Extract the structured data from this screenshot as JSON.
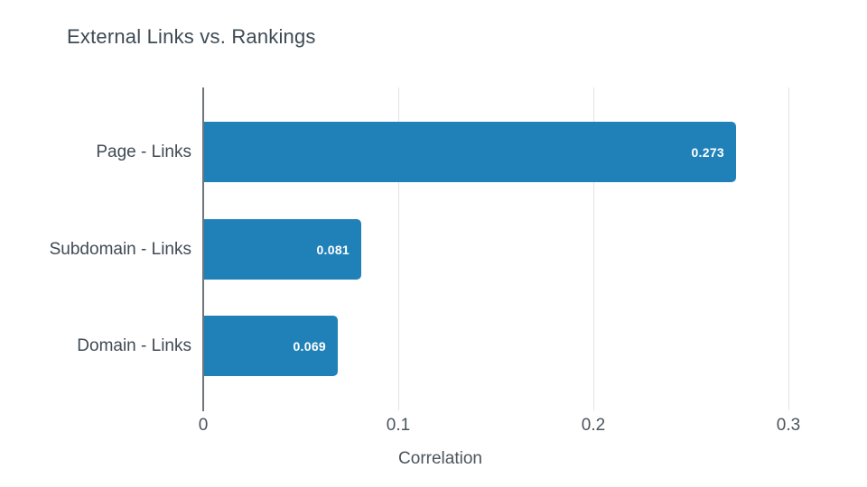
{
  "chart_data": {
    "type": "bar",
    "orientation": "horizontal",
    "title": "External Links vs. Rankings",
    "xlabel": "Correlation",
    "ylabel": "",
    "categories": [
      "Page - Links",
      "Subdomain - Links",
      "Domain - Links"
    ],
    "values": [
      0.273,
      0.081,
      0.069
    ],
    "value_labels": [
      "0.273",
      "0.081",
      "0.069"
    ],
    "xlim": [
      0,
      0.3
    ],
    "xticks": [
      0,
      0.1,
      0.2,
      0.3
    ],
    "xtick_labels": [
      "0",
      "0.1",
      "0.2",
      "0.3"
    ],
    "grid": "vertical-gridlines",
    "legend": "none",
    "colors": {
      "bar": "#2081b8",
      "value_label": "#ffffff",
      "title": "#3e4a53",
      "category_label": "#3f4a54",
      "axis_text": "#4b545c",
      "gridline": "#e0e3e5",
      "axis_line": "#6e757b",
      "background": "#ffffff"
    }
  }
}
